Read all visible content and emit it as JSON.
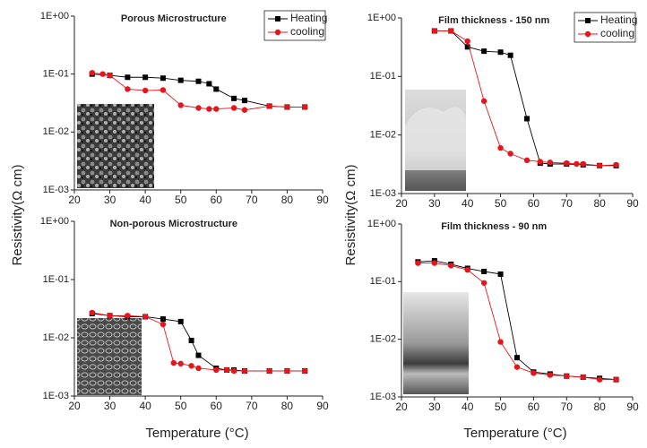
{
  "chart_data": [
    {
      "type": "line",
      "title": "Porous Microstructure",
      "yscale": "log",
      "legend": "upper right",
      "ylabel": "Resistivity(Ω cm)",
      "xlim": [
        20,
        90
      ],
      "xticks": [
        20,
        30,
        40,
        50,
        60,
        70,
        80,
        90
      ],
      "ylim": [
        0.001,
        1
      ],
      "yticks": [
        {
          "value": 0.001,
          "label": "1E-03"
        },
        {
          "value": 0.01,
          "label": "1E-02"
        },
        {
          "value": 0.1,
          "label": "1E-01"
        },
        {
          "value": 1,
          "label": "1E+00"
        }
      ],
      "series": [
        {
          "name": "Heating",
          "color": "#000000",
          "marker": "square",
          "x": [
            25,
            30,
            35,
            40,
            45,
            50,
            55,
            58,
            60,
            65,
            68,
            75,
            80,
            85
          ],
          "values": [
            0.1,
            0.095,
            0.088,
            0.088,
            0.085,
            0.078,
            0.075,
            0.068,
            0.055,
            0.038,
            0.035,
            0.028,
            0.027,
            0.027
          ]
        },
        {
          "name": "cooling",
          "color": "#e8141b",
          "marker": "circle",
          "x": [
            25,
            28,
            30,
            35,
            40,
            45,
            50,
            55,
            58,
            60,
            65,
            68,
            75,
            80,
            85
          ],
          "values": [
            0.105,
            0.1,
            0.095,
            0.055,
            0.052,
            0.053,
            0.029,
            0.026,
            0.025,
            0.025,
            0.026,
            0.024,
            0.028,
            0.027,
            0.027
          ]
        }
      ]
    },
    {
      "type": "line",
      "title": "Non-porous Microstructure",
      "yscale": "log",
      "xlabel": "Temperature (°C)",
      "xlim": [
        20,
        90
      ],
      "xticks": [
        20,
        30,
        40,
        50,
        60,
        70,
        80,
        90
      ],
      "ylim": [
        0.001,
        1
      ],
      "yticks": [
        {
          "value": 0.001,
          "label": "1E-03"
        },
        {
          "value": 0.01,
          "label": "1E-02"
        },
        {
          "value": 0.1,
          "label": "1E-01"
        },
        {
          "value": 1,
          "label": "1E+00"
        }
      ],
      "series": [
        {
          "name": "Heating",
          "color": "#000000",
          "marker": "square",
          "x": [
            25,
            30,
            35,
            40,
            45,
            50,
            53,
            55,
            60,
            63,
            65,
            68,
            75,
            80,
            85
          ],
          "values": [
            0.026,
            0.024,
            0.023,
            0.023,
            0.021,
            0.019,
            0.009,
            0.005,
            0.003,
            0.0028,
            0.0028,
            0.0027,
            0.0027,
            0.0027,
            0.0027
          ]
        },
        {
          "name": "cooling",
          "color": "#e8141b",
          "marker": "circle",
          "x": [
            25,
            30,
            35,
            40,
            45,
            48,
            50,
            53,
            55,
            60,
            63,
            65,
            68,
            75,
            80,
            85
          ],
          "values": [
            0.027,
            0.024,
            0.024,
            0.023,
            0.017,
            0.0037,
            0.0036,
            0.0033,
            0.003,
            0.0028,
            0.0028,
            0.0027,
            0.0027,
            0.0027,
            0.0027,
            0.0027
          ]
        }
      ]
    },
    {
      "type": "line",
      "title": "Film thickness - 150 nm",
      "yscale": "log",
      "legend": "upper right",
      "ylabel": "Resistivity(Ω cm)",
      "xlim": [
        20,
        90
      ],
      "xticks": [
        20,
        30,
        40,
        50,
        60,
        70,
        80,
        90
      ],
      "ylim": [
        0.001,
        1
      ],
      "yticks": [
        {
          "value": 0.001,
          "label": "1E-03"
        },
        {
          "value": 0.01,
          "label": "1E-02"
        },
        {
          "value": 0.1,
          "label": "1E-01"
        },
        {
          "value": 1,
          "label": "1E+00"
        }
      ],
      "series": [
        {
          "name": "Heating",
          "color": "#000000",
          "marker": "square",
          "x": [
            30,
            35,
            40,
            45,
            50,
            53,
            58,
            62,
            65,
            70,
            75,
            80,
            85
          ],
          "values": [
            0.6,
            0.6,
            0.32,
            0.27,
            0.26,
            0.23,
            0.019,
            0.0033,
            0.0032,
            0.0032,
            0.0031,
            0.003,
            0.003
          ]
        },
        {
          "name": "cooling",
          "color": "#e8141b",
          "marker": "circle",
          "x": [
            30,
            35,
            40,
            45,
            50,
            53,
            58,
            62,
            65,
            70,
            73,
            75,
            80,
            85
          ],
          "values": [
            0.6,
            0.6,
            0.4,
            0.038,
            0.006,
            0.0048,
            0.0037,
            0.0035,
            0.0034,
            0.0033,
            0.0032,
            0.0032,
            0.003,
            0.0031
          ]
        }
      ]
    },
    {
      "type": "line",
      "title": "Film thickness - 90 nm",
      "yscale": "log",
      "xlabel": "Temperature (°C)",
      "xlim": [
        20,
        90
      ],
      "xticks": [
        20,
        30,
        40,
        50,
        60,
        70,
        80,
        90
      ],
      "ylim": [
        0.001,
        1
      ],
      "yticks": [
        {
          "value": 0.001,
          "label": "1E-03"
        },
        {
          "value": 0.01,
          "label": "1E-02"
        },
        {
          "value": 0.1,
          "label": "1E-01"
        },
        {
          "value": 1,
          "label": "1E+00"
        }
      ],
      "series": [
        {
          "name": "Heating",
          "color": "#000000",
          "marker": "square",
          "x": [
            25,
            30,
            35,
            40,
            45,
            50,
            55,
            60,
            65,
            70,
            75,
            80,
            85
          ],
          "values": [
            0.22,
            0.23,
            0.2,
            0.17,
            0.15,
            0.135,
            0.0048,
            0.0027,
            0.0025,
            0.0023,
            0.0022,
            0.0021,
            0.002
          ]
        },
        {
          "name": "cooling",
          "color": "#e8141b",
          "marker": "circle",
          "x": [
            25,
            30,
            35,
            40,
            45,
            50,
            55,
            60,
            65,
            70,
            75,
            80,
            85
          ],
          "values": [
            0.21,
            0.21,
            0.19,
            0.16,
            0.095,
            0.009,
            0.0033,
            0.0026,
            0.0024,
            0.0023,
            0.0022,
            0.002,
            0.002
          ]
        }
      ]
    }
  ]
}
